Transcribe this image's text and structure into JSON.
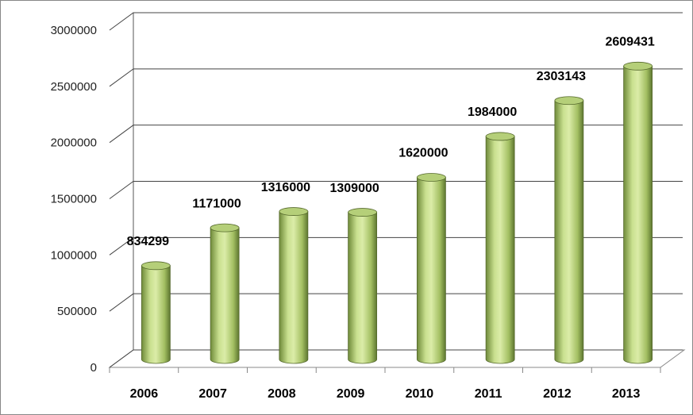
{
  "chart_data": {
    "type": "bar",
    "categories": [
      "2006",
      "2007",
      "2008",
      "2009",
      "2010",
      "2011",
      "2012",
      "2013"
    ],
    "values": [
      834299,
      1171000,
      1316000,
      1309000,
      1620000,
      1984000,
      2303143,
      2609431
    ],
    "color": "#b5cf79",
    "ylim": [
      0,
      3000000
    ],
    "yticks": [
      0,
      500000,
      1000000,
      1500000,
      2000000,
      2500000,
      3000000
    ],
    "grid": true
  }
}
